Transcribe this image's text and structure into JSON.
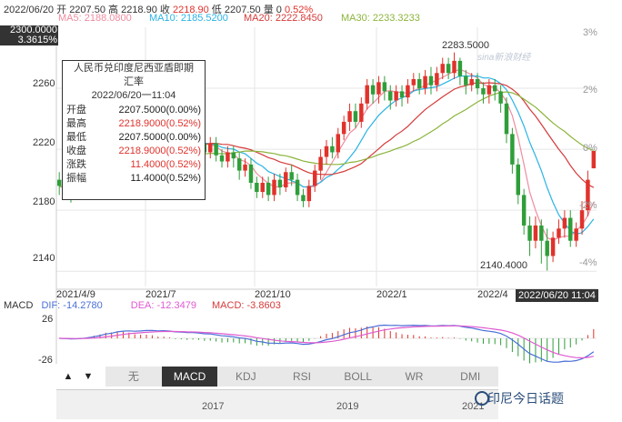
{
  "header": {
    "date": "2022/06/20",
    "open_label": "开",
    "open": "2207.50",
    "high_label": "高",
    "high": "2218.90",
    "close_label": "收",
    "close": "2218.90",
    "low_label": "低",
    "low": "2207.50",
    "volume_label": "量",
    "volume": "0",
    "change_pct": "0.52%"
  },
  "ma_legend": [
    {
      "label": "MA5: 2188.0800",
      "color": "#f08ca0"
    },
    {
      "label": "MA10: 2185.5200",
      "color": "#2ab4e6"
    },
    {
      "label": "MA20: 2222.8450",
      "color": "#d63a3a"
    },
    {
      "label": "MA30: 2233.3233",
      "color": "#8cb43c"
    }
  ],
  "price_axis": {
    "cursor_price": "2300.0000",
    "cursor_pct": "3.3615%",
    "left_ticks": [
      "2260",
      "2220",
      "2180",
      "2140"
    ],
    "right_ticks": [
      "3%",
      "2%",
      "0%",
      "-2%",
      "-4%"
    ]
  },
  "annotations": {
    "max_label": "2283.5000",
    "min_label": "2140.4000",
    "watermark_logo": "sina新浪财经"
  },
  "tooltip": {
    "title_line1": "人民币兑印度尼西亚盾即期",
    "title_line2": "汇率",
    "datetime": "2022/06/20一11:04",
    "rows": [
      {
        "k": "开盘",
        "v": "2207.5000(0.00%)",
        "color": "#222"
      },
      {
        "k": "最高",
        "v": "2218.9000(0.52%)",
        "color": "#e0322b"
      },
      {
        "k": "最低",
        "v": "2207.5000(0.00%)",
        "color": "#222"
      },
      {
        "k": "收盘",
        "v": "2218.9000(0.52%)",
        "color": "#e0322b"
      },
      {
        "k": "涨跌",
        "v": "11.4000(0.52%)",
        "color": "#e0322b"
      },
      {
        "k": "振幅",
        "v": "11.4000(0.52%)",
        "color": "#222"
      }
    ]
  },
  "x_axis": {
    "ticks": [
      "2021/4/9",
      "2021/7",
      "2021/10",
      "2022/1",
      "2022/4"
    ],
    "cursor_datetime": "2022/06/20 11:04"
  },
  "macd": {
    "name": "MACD",
    "dif": "DIF: -14.2780",
    "dea": "DEA: -12.3479",
    "macd": "MACD: -3.8603",
    "dif_color": "#4a6fd8",
    "dea_color": "#e05ad0",
    "macd_color": "#d63a3a",
    "top_tick": "26",
    "bottom_tick": "-26"
  },
  "tabs": [
    {
      "label": "无",
      "active": false
    },
    {
      "label": "MACD",
      "active": true
    },
    {
      "label": "KDJ",
      "active": false
    },
    {
      "label": "RSI",
      "active": false
    },
    {
      "label": "BOLL",
      "active": false
    },
    {
      "label": "WR",
      "active": false
    },
    {
      "label": "DMI",
      "active": false
    }
  ],
  "nav_arrows": {
    "up": "▲",
    "down": "▼"
  },
  "navigator": {
    "years": [
      "2017",
      "2019",
      "2021"
    ]
  },
  "watermark": "印尼今日话题",
  "chart_data": {
    "type": "candlestick",
    "title": "人民币兑印度尼西亚盾即期汇率",
    "ylim": [
      2130,
      2300
    ],
    "candles": [
      [
        2200,
        2196,
        2190,
        2205
      ],
      [
        2196,
        2193,
        2188,
        2200
      ],
      [
        2193,
        2190,
        2185,
        2198
      ],
      [
        2190,
        2196,
        2188,
        2200
      ],
      [
        2196,
        2200,
        2192,
        2204
      ],
      [
        2200,
        2205,
        2196,
        2208
      ],
      [
        2205,
        2210,
        2200,
        2214
      ],
      [
        2210,
        2215,
        2206,
        2220
      ],
      [
        2215,
        2225,
        2210,
        2228
      ],
      [
        2225,
        2220,
        2215,
        2230
      ],
      [
        2220,
        2230,
        2218,
        2234
      ],
      [
        2230,
        2226,
        2220,
        2236
      ],
      [
        2226,
        2224,
        2220,
        2232
      ],
      [
        2224,
        2218,
        2214,
        2228
      ],
      [
        2218,
        2225,
        2212,
        2230
      ],
      [
        2225,
        2230,
        2220,
        2235
      ],
      [
        2230,
        2228,
        2222,
        2236
      ],
      [
        2228,
        2222,
        2218,
        2232
      ],
      [
        2222,
        2230,
        2218,
        2233
      ],
      [
        2230,
        2225,
        2220,
        2236
      ],
      [
        2225,
        2218,
        2214,
        2230
      ],
      [
        2218,
        2225,
        2212,
        2228
      ],
      [
        2225,
        2222,
        2218,
        2230
      ],
      [
        2222,
        2228,
        2218,
        2232
      ],
      [
        2228,
        2224,
        2220,
        2232
      ],
      [
        2224,
        2218,
        2212,
        2228
      ],
      [
        2218,
        2224,
        2214,
        2228
      ],
      [
        2224,
        2216,
        2212,
        2228
      ],
      [
        2216,
        2212,
        2208,
        2220
      ],
      [
        2212,
        2218,
        2208,
        2222
      ],
      [
        2218,
        2214,
        2208,
        2222
      ],
      [
        2214,
        2206,
        2200,
        2218
      ],
      [
        2206,
        2210,
        2202,
        2214
      ],
      [
        2210,
        2198,
        2194,
        2214
      ],
      [
        2198,
        2192,
        2188,
        2202
      ],
      [
        2192,
        2198,
        2188,
        2202
      ],
      [
        2198,
        2190,
        2186,
        2202
      ],
      [
        2190,
        2200,
        2186,
        2204
      ],
      [
        2200,
        2195,
        2190,
        2204
      ],
      [
        2195,
        2205,
        2192,
        2208
      ],
      [
        2205,
        2200,
        2196,
        2210
      ],
      [
        2200,
        2190,
        2186,
        2204
      ],
      [
        2190,
        2186,
        2182,
        2194
      ],
      [
        2186,
        2196,
        2182,
        2200
      ],
      [
        2196,
        2206,
        2192,
        2210
      ],
      [
        2206,
        2215,
        2200,
        2220
      ],
      [
        2215,
        2222,
        2210,
        2226
      ],
      [
        2222,
        2218,
        2214,
        2228
      ],
      [
        2218,
        2230,
        2214,
        2234
      ],
      [
        2230,
        2238,
        2226,
        2242
      ],
      [
        2238,
        2245,
        2232,
        2250
      ],
      [
        2245,
        2238,
        2234,
        2250
      ],
      [
        2238,
        2250,
        2234,
        2254
      ],
      [
        2250,
        2262,
        2246,
        2266
      ],
      [
        2262,
        2256,
        2250,
        2266
      ],
      [
        2256,
        2264,
        2250,
        2268
      ],
      [
        2264,
        2258,
        2252,
        2268
      ],
      [
        2258,
        2252,
        2246,
        2262
      ],
      [
        2252,
        2258,
        2248,
        2262
      ],
      [
        2258,
        2254,
        2248,
        2262
      ],
      [
        2254,
        2262,
        2250,
        2266
      ],
      [
        2262,
        2266,
        2258,
        2270
      ],
      [
        2266,
        2260,
        2256,
        2270
      ],
      [
        2260,
        2268,
        2256,
        2272
      ],
      [
        2268,
        2262,
        2256,
        2274
      ],
      [
        2262,
        2270,
        2258,
        2274
      ],
      [
        2270,
        2276,
        2266,
        2280
      ],
      [
        2276,
        2270,
        2266,
        2280
      ],
      [
        2270,
        2278,
        2266,
        2283.5
      ],
      [
        2278,
        2268,
        2262,
        2280
      ],
      [
        2268,
        2262,
        2256,
        2272
      ],
      [
        2262,
        2266,
        2258,
        2270
      ],
      [
        2266,
        2260,
        2256,
        2270
      ],
      [
        2260,
        2256,
        2250,
        2264
      ],
      [
        2256,
        2262,
        2250,
        2266
      ],
      [
        2262,
        2258,
        2252,
        2266
      ],
      [
        2258,
        2250,
        2244,
        2262
      ],
      [
        2250,
        2230,
        2224,
        2254
      ],
      [
        2230,
        2210,
        2204,
        2234
      ],
      [
        2210,
        2190,
        2184,
        2214
      ],
      [
        2190,
        2170,
        2164,
        2194
      ],
      [
        2170,
        2160,
        2150,
        2176
      ],
      [
        2160,
        2170,
        2155,
        2176
      ],
      [
        2170,
        2160,
        2145,
        2174
      ],
      [
        2160,
        2150,
        2140.4,
        2168
      ],
      [
        2150,
        2162,
        2146,
        2166
      ],
      [
        2162,
        2168,
        2158,
        2174
      ],
      [
        2168,
        2175,
        2162,
        2180
      ],
      [
        2175,
        2160,
        2156,
        2180
      ],
      [
        2160,
        2168,
        2156,
        2172
      ],
      [
        2168,
        2180,
        2164,
        2186
      ],
      [
        2180,
        2200,
        2176,
        2206
      ],
      [
        2207.5,
        2218.9,
        2207.5,
        2218.9
      ]
    ],
    "ma_series": [
      "MA5",
      "MA10",
      "MA20",
      "MA30"
    ]
  }
}
